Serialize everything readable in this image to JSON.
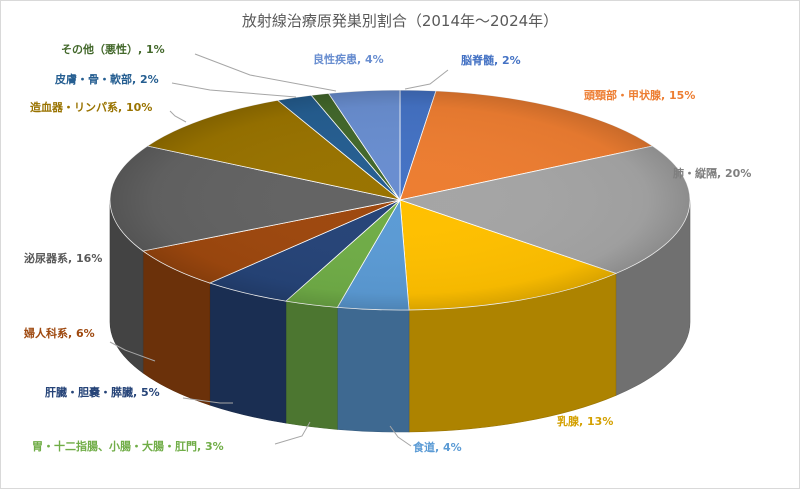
{
  "chart_data": {
    "type": "pie",
    "title": "放射線治療原発巣別割合（2014年～2024年）",
    "slices": [
      {
        "label": "脳脊髄",
        "value": 2,
        "value_text": "2%",
        "color": "#4472C4",
        "label_color": "#4472C4"
      },
      {
        "label": "頭頸部・甲状腺",
        "value": 15,
        "value_text": "15%",
        "color": "#ED7D31",
        "label_color": "#ED7D31"
      },
      {
        "label": "肺・縦隔",
        "value": 20,
        "value_text": "20%",
        "color": "#A5A5A5",
        "label_color": "#7F7F7F"
      },
      {
        "label": "乳腺",
        "value": 13,
        "value_text": "13%",
        "color": "#FFC000",
        "label_color": "#D4A000"
      },
      {
        "label": "食道",
        "value": 4,
        "value_text": "4%",
        "color": "#5B9BD5",
        "label_color": "#5B9BD5"
      },
      {
        "label": "胃・十二指腸、小腸・大腸・肛門",
        "value": 3,
        "value_text": "3%",
        "color": "#70AD47",
        "label_color": "#70AD47"
      },
      {
        "label": "肝臓・胆嚢・膵臓",
        "value": 5,
        "value_text": "5%",
        "color": "#264478",
        "label_color": "#264478"
      },
      {
        "label": "婦人科系",
        "value": 6,
        "value_text": "6%",
        "color": "#9E480E",
        "label_color": "#9E480E"
      },
      {
        "label": "泌尿器系",
        "value": 16,
        "value_text": "16%",
        "color": "#636363",
        "label_color": "#595959"
      },
      {
        "label": "造血器・リンパ系",
        "value": 10,
        "value_text": "10%",
        "color": "#997300",
        "label_color": "#997300"
      },
      {
        "label": "皮膚・骨・軟部",
        "value": 2,
        "value_text": "2%",
        "color": "#255E91",
        "label_color": "#255E91"
      },
      {
        "label": "その他（悪性）",
        "value": 1,
        "value_text": "1%",
        "color": "#43682B",
        "label_color": "#43682B"
      },
      {
        "label": "良性疾患",
        "value": 4,
        "value_text": "4%",
        "color": "#698ED0",
        "label_color": "#698ED0"
      }
    ]
  }
}
